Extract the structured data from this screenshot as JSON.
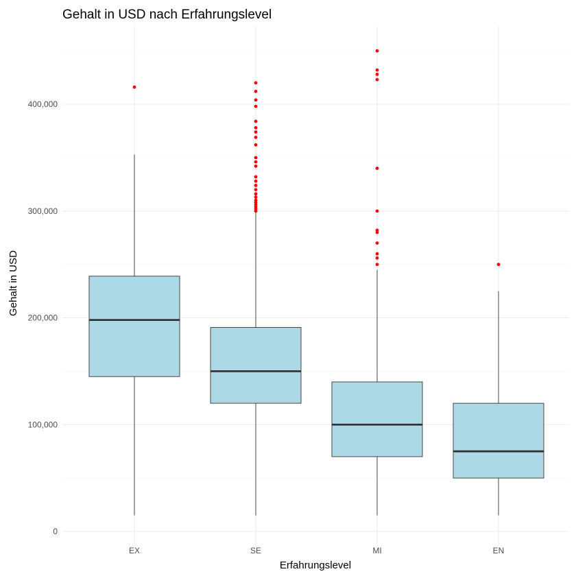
{
  "chart_data": {
    "type": "boxplot",
    "title": "Gehalt in USD nach Erfahrungslevel",
    "xlabel": "Erfahrungslevel",
    "ylabel": "Gehalt in USD",
    "categories": [
      "EX",
      "SE",
      "MI",
      "EN"
    ],
    "ylim": [
      -15000,
      465000
    ],
    "y_ticks": [
      0,
      100000,
      200000,
      300000,
      400000
    ],
    "y_tick_labels": [
      "0",
      "100,000",
      "200,000",
      "300,000",
      "400,000"
    ],
    "grid": true,
    "box_fill": "#add8e6",
    "box_outline": "#333333",
    "outlier_color": "#ff0000",
    "boxes": [
      {
        "category": "EX",
        "min": 15000,
        "q1": 145000,
        "median": 198000,
        "q3": 239000,
        "max": 353000,
        "outliers": [
          416000
        ]
      },
      {
        "category": "SE",
        "min": 15000,
        "q1": 120000,
        "median": 150000,
        "q3": 191000,
        "max": 299000,
        "outliers": [
          300000,
          302000,
          304000,
          306000,
          308000,
          310000,
          313000,
          316000,
          320000,
          324000,
          328000,
          332000,
          342000,
          346000,
          350000,
          362000,
          369000,
          374000,
          378000,
          384000,
          398000,
          404000,
          412000,
          420000
        ]
      },
      {
        "category": "MI",
        "min": 15000,
        "q1": 70000,
        "median": 100000,
        "q3": 140000,
        "max": 245000,
        "outliers": [
          250000,
          256000,
          260000,
          270000,
          280000,
          282000,
          300000,
          340000,
          423000,
          428000,
          432000,
          450000
        ]
      },
      {
        "category": "EN",
        "min": 15000,
        "q1": 50000,
        "median": 75000,
        "q3": 120000,
        "max": 225000,
        "outliers": [
          250000
        ]
      }
    ]
  }
}
